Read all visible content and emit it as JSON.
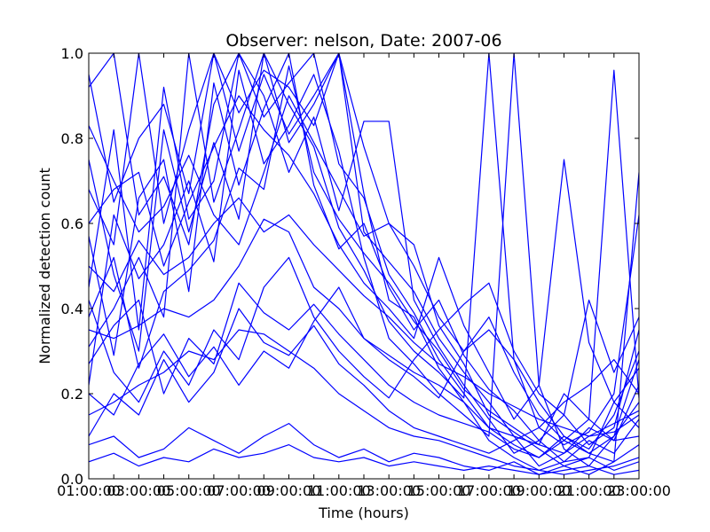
{
  "chart_data": {
    "type": "line",
    "title": "Observer: nelson, Date: 2007-06",
    "xlabel": "Time (hours)",
    "ylabel": "Normalized detection count",
    "x_ticks": [
      "01:00:00",
      "02:00:00",
      "03:00:00",
      "04:00:00",
      "05:00:00",
      "06:00:00",
      "07:00:00",
      "08:00:00",
      "09:00:00",
      "10:00:00",
      "11:00:00",
      "12:00:00",
      "13:00:00",
      "14:00:00",
      "15:00:00",
      "16:00:00",
      "17:00:00",
      "18:00:00",
      "19:00:00",
      "20:00:00",
      "21:00:00",
      "22:00:00",
      "23:00:00"
    ],
    "y_ticks": [
      "0.0",
      "0.2",
      "0.4",
      "0.6",
      "0.8",
      "1.0"
    ],
    "ylim": [
      0,
      1
    ],
    "grid": false,
    "line_color": "#0000ff",
    "x": [
      "01:00:00",
      "02:00:00",
      "03:00:00",
      "04:00:00",
      "05:00:00",
      "06:00:00",
      "07:00:00",
      "08:00:00",
      "09:00:00",
      "10:00:00",
      "11:00:00",
      "12:00:00",
      "13:00:00",
      "14:00:00",
      "15:00:00",
      "16:00:00",
      "17:00:00",
      "18:00:00",
      "19:00:00",
      "20:00:00",
      "21:00:00",
      "22:00:00",
      "23:00:00"
    ],
    "series": [
      {
        "values": [
          0.92,
          1.0,
          0.62,
          0.71,
          0.55,
          0.88,
          1.0,
          0.85,
          0.93,
          1.0,
          0.74,
          0.66,
          0.48,
          0.39,
          0.28,
          0.2,
          0.12,
          0.08,
          0.05,
          0.1,
          0.07,
          0.15,
          0.3
        ]
      },
      {
        "values": [
          0.68,
          0.55,
          1.0,
          0.6,
          0.82,
          1.0,
          0.77,
          0.95,
          0.81,
          0.9,
          1.0,
          0.58,
          0.51,
          0.44,
          0.33,
          0.25,
          0.18,
          0.1,
          0.03,
          0.06,
          0.12,
          0.09,
          0.22
        ]
      },
      {
        "values": [
          0.45,
          0.82,
          0.35,
          0.92,
          0.61,
          0.7,
          1.0,
          0.9,
          0.72,
          0.85,
          0.63,
          0.84,
          0.84,
          0.42,
          0.31,
          0.22,
          0.14,
          0.06,
          0.09,
          0.04,
          0.05,
          0.18,
          0.26
        ]
      },
      {
        "values": [
          0.31,
          0.4,
          0.52,
          0.38,
          1.0,
          0.65,
          0.82,
          1.0,
          0.88,
          0.78,
          0.59,
          0.49,
          0.37,
          0.3,
          0.25,
          0.19,
          1.0,
          0.28,
          0.12,
          0.08,
          0.11,
          0.2,
          0.62
        ]
      },
      {
        "values": [
          0.57,
          0.29,
          0.66,
          0.75,
          0.44,
          0.93,
          0.69,
          0.87,
          1.0,
          0.69,
          0.54,
          0.6,
          0.45,
          0.35,
          0.42,
          0.29,
          0.21,
          0.16,
          0.09,
          0.15,
          0.08,
          0.12,
          0.35
        ]
      },
      {
        "values": [
          0.22,
          0.62,
          0.47,
          0.55,
          0.7,
          0.51,
          0.96,
          0.74,
          0.83,
          0.95,
          0.77,
          0.52,
          0.33,
          0.27,
          0.2,
          0.15,
          0.1,
          1.0,
          0.22,
          0.07,
          0.03,
          0.1,
          0.18
        ]
      },
      {
        "values": [
          0.75,
          0.48,
          0.3,
          0.82,
          0.58,
          0.79,
          0.61,
          1.0,
          0.79,
          0.88,
          1.0,
          0.67,
          0.42,
          0.38,
          0.26,
          0.18,
          0.09,
          0.05,
          0.02,
          0.04,
          0.09,
          0.06,
          0.14
        ]
      },
      {
        "values": [
          0.08,
          0.1,
          0.05,
          0.07,
          0.12,
          0.09,
          0.06,
          0.1,
          0.13,
          0.08,
          0.05,
          0.07,
          0.04,
          0.06,
          0.05,
          0.03,
          0.02,
          0.04,
          0.01,
          0.03,
          0.05,
          0.02,
          0.04
        ]
      },
      {
        "values": [
          0.35,
          0.33,
          0.36,
          0.4,
          0.38,
          0.42,
          0.5,
          0.61,
          0.58,
          0.45,
          0.4,
          0.33,
          0.29,
          0.25,
          0.22,
          0.18,
          0.12,
          0.1,
          0.08,
          0.06,
          0.1,
          0.11,
          0.15
        ]
      },
      {
        "values": [
          0.15,
          0.18,
          0.22,
          0.25,
          0.3,
          0.28,
          0.35,
          0.34,
          0.3,
          0.26,
          0.2,
          0.16,
          0.12,
          0.1,
          0.09,
          0.07,
          0.05,
          0.03,
          0.02,
          0.01,
          0.02,
          0.03,
          0.05
        ]
      },
      {
        "values": [
          0.6,
          0.68,
          0.72,
          0.5,
          0.65,
          0.78,
          0.9,
          0.82,
          0.76,
          0.67,
          0.55,
          0.46,
          0.4,
          0.33,
          0.52,
          0.36,
          0.25,
          0.14,
          0.22,
          0.75,
          0.32,
          0.18,
          0.12
        ]
      },
      {
        "values": [
          0.42,
          0.25,
          0.18,
          0.3,
          0.22,
          0.35,
          0.28,
          0.45,
          0.52,
          0.38,
          0.3,
          0.24,
          0.19,
          0.28,
          0.35,
          0.41,
          0.46,
          0.3,
          0.2,
          0.15,
          0.42,
          0.25,
          0.38
        ]
      },
      {
        "values": [
          0.1,
          0.2,
          0.15,
          0.28,
          0.18,
          0.25,
          0.4,
          0.32,
          0.29,
          0.36,
          0.27,
          0.22,
          0.16,
          0.12,
          0.1,
          0.08,
          0.06,
          0.09,
          0.12,
          0.18,
          0.22,
          0.28,
          0.2
        ]
      },
      {
        "values": [
          0.83,
          0.7,
          0.58,
          0.64,
          0.76,
          0.62,
          0.55,
          0.72,
          0.9,
          0.79,
          0.68,
          0.57,
          0.6,
          0.5,
          0.38,
          0.3,
          0.35,
          0.28,
          0.18,
          0.1,
          0.06,
          0.04,
          0.08
        ]
      },
      {
        "values": [
          0.5,
          0.44,
          0.56,
          0.48,
          0.52,
          0.6,
          0.66,
          0.58,
          0.62,
          0.55,
          0.49,
          0.43,
          0.38,
          0.32,
          0.27,
          0.24,
          0.2,
          0.17,
          0.14,
          0.12,
          0.1,
          0.13,
          0.16
        ]
      },
      {
        "values": [
          0.27,
          0.36,
          0.42,
          0.2,
          0.33,
          0.27,
          0.46,
          0.39,
          0.35,
          0.41,
          0.34,
          0.28,
          0.22,
          0.18,
          0.15,
          0.13,
          0.11,
          0.07,
          0.05,
          0.09,
          0.14,
          0.96,
          0.19
        ]
      },
      {
        "values": [
          0.95,
          0.65,
          0.8,
          0.88,
          0.67,
          1.0,
          0.86,
          0.96,
          0.92,
          0.83,
          1.0,
          0.78,
          0.6,
          0.55,
          0.36,
          0.27,
          0.15,
          0.11,
          0.07,
          0.03,
          0.01,
          0.04,
          0.72
        ]
      },
      {
        "values": [
          0.04,
          0.06,
          0.03,
          0.05,
          0.04,
          0.07,
          0.05,
          0.06,
          0.08,
          0.05,
          0.04,
          0.05,
          0.03,
          0.04,
          0.03,
          0.02,
          0.03,
          0.02,
          0.01,
          0.02,
          0.03,
          0.01,
          0.02
        ]
      },
      {
        "values": [
          0.38,
          0.52,
          0.26,
          0.44,
          0.49,
          0.56,
          0.73,
          0.68,
          0.97,
          0.72,
          0.61,
          0.53,
          0.46,
          0.37,
          0.3,
          0.21,
          0.16,
          0.12,
          0.08,
          0.2,
          0.14,
          0.09,
          0.1
        ]
      },
      {
        "values": [
          0.2,
          0.15,
          0.27,
          0.34,
          0.24,
          0.31,
          0.22,
          0.3,
          0.26,
          0.37,
          0.45,
          0.33,
          0.28,
          0.24,
          0.19,
          0.3,
          0.38,
          0.25,
          0.15,
          0.09,
          0.06,
          0.1,
          0.28
        ]
      }
    ]
  }
}
